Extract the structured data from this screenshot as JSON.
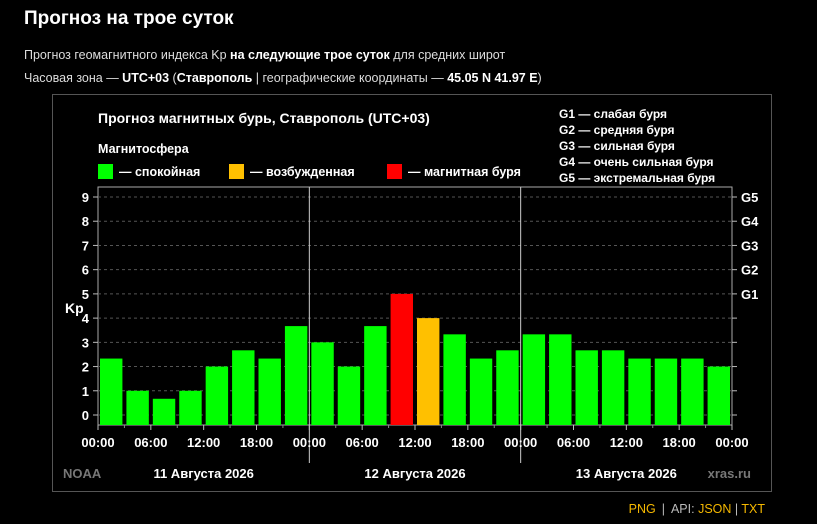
{
  "page": {
    "title": "Прогноз на трое суток",
    "line1_a": "Прогноз геомагнитного индекса Kp ",
    "line1_b": "на следующие трое суток",
    "line1_c": " для средних широт",
    "line2_a": "Часовая зона — ",
    "line2_b": "UTC+03",
    "line2_c": " (",
    "line2_d": "Ставрополь",
    "line2_e": " | географические координаты — ",
    "line2_f": "45.05 N 41.97 E",
    "line2_g": ")"
  },
  "footer": {
    "png": "PNG",
    "sep1": "|",
    "api_label": "API:",
    "json": "JSON",
    "sep2": "|",
    "txt": "TXT"
  },
  "chart_data": {
    "type": "bar",
    "title": "Прогноз магнитных бурь, Ставрополь (UTC+03)",
    "ylabel": "Kp",
    "ylim": [
      0,
      9
    ],
    "yticks": [
      0,
      1,
      2,
      3,
      4,
      5,
      6,
      7,
      8,
      9
    ],
    "right_axis_labels": [
      {
        "label": "G1",
        "kp": 5
      },
      {
        "label": "G2",
        "kp": 6
      },
      {
        "label": "G3",
        "kp": 7
      },
      {
        "label": "G4",
        "kp": 8
      },
      {
        "label": "G5",
        "kp": 9
      }
    ],
    "legend_title": "Магнитосфера",
    "legend": [
      {
        "label": "— спокойная",
        "color": "#00ff00"
      },
      {
        "label": "— возбужденная",
        "color": "#ffc000"
      },
      {
        "label": "— магнитная буря",
        "color": "#ff0000"
      }
    ],
    "storm_scale": [
      "G1 — слабая буря",
      "G2 — средняя буря",
      "G3 — сильная буря",
      "G4 — очень сильная буря",
      "G5 — экстремальная буря"
    ],
    "x_tick_labels": [
      "00:00",
      "06:00",
      "12:00",
      "18:00",
      "00:00",
      "06:00",
      "12:00",
      "18:00",
      "00:00",
      "06:00",
      "12:00",
      "18:00",
      "00:00"
    ],
    "days": [
      "11 Августа 2026",
      "12 Августа 2026",
      "13 Августа 2026"
    ],
    "values": [
      2.33,
      1.0,
      0.67,
      1.0,
      2.0,
      2.67,
      2.33,
      3.67,
      3.0,
      2.0,
      3.67,
      5.0,
      4.0,
      3.33,
      2.33,
      2.67,
      3.33,
      3.33,
      2.67,
      2.67,
      2.33,
      2.33,
      2.33,
      2.0
    ],
    "bar_colors": {
      "quiet": "#00ff00",
      "active": "#ffc000",
      "storm": "#ff0000"
    },
    "grid": true,
    "source_left": "NOAA",
    "source_right": "xras.ru"
  }
}
